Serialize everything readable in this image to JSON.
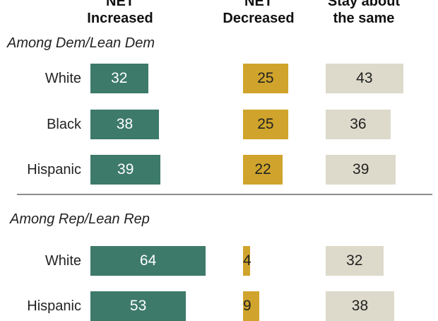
{
  "headers": {
    "increased": [
      "NET",
      "Increased"
    ],
    "decreased": [
      "NET",
      "Decreased"
    ],
    "same": [
      "Stay about",
      "the same"
    ]
  },
  "colors": {
    "increased": "#3d7a6a",
    "decreased": "#d0a42c",
    "same": "#dddacb",
    "divider": "#8c8c8c"
  },
  "chart_data": {
    "type": "bar",
    "orientation": "horizontal",
    "columns": [
      "NET Increased",
      "NET Decreased",
      "Stay about the same"
    ],
    "groups": [
      {
        "label": "Among Dem/Lean Dem",
        "rows": [
          {
            "label": "White",
            "increased": 32,
            "decreased": 25,
            "same": 43
          },
          {
            "label": "Black",
            "increased": 38,
            "decreased": 25,
            "same": 36
          },
          {
            "label": "Hispanic",
            "increased": 39,
            "decreased": 22,
            "same": 39
          }
        ]
      },
      {
        "label": "Among Rep/Lean Rep",
        "rows": [
          {
            "label": "White",
            "increased": 64,
            "decreased": 4,
            "same": 32
          },
          {
            "label": "Hispanic",
            "increased": 53,
            "decreased": 9,
            "same": 38
          }
        ]
      }
    ]
  }
}
